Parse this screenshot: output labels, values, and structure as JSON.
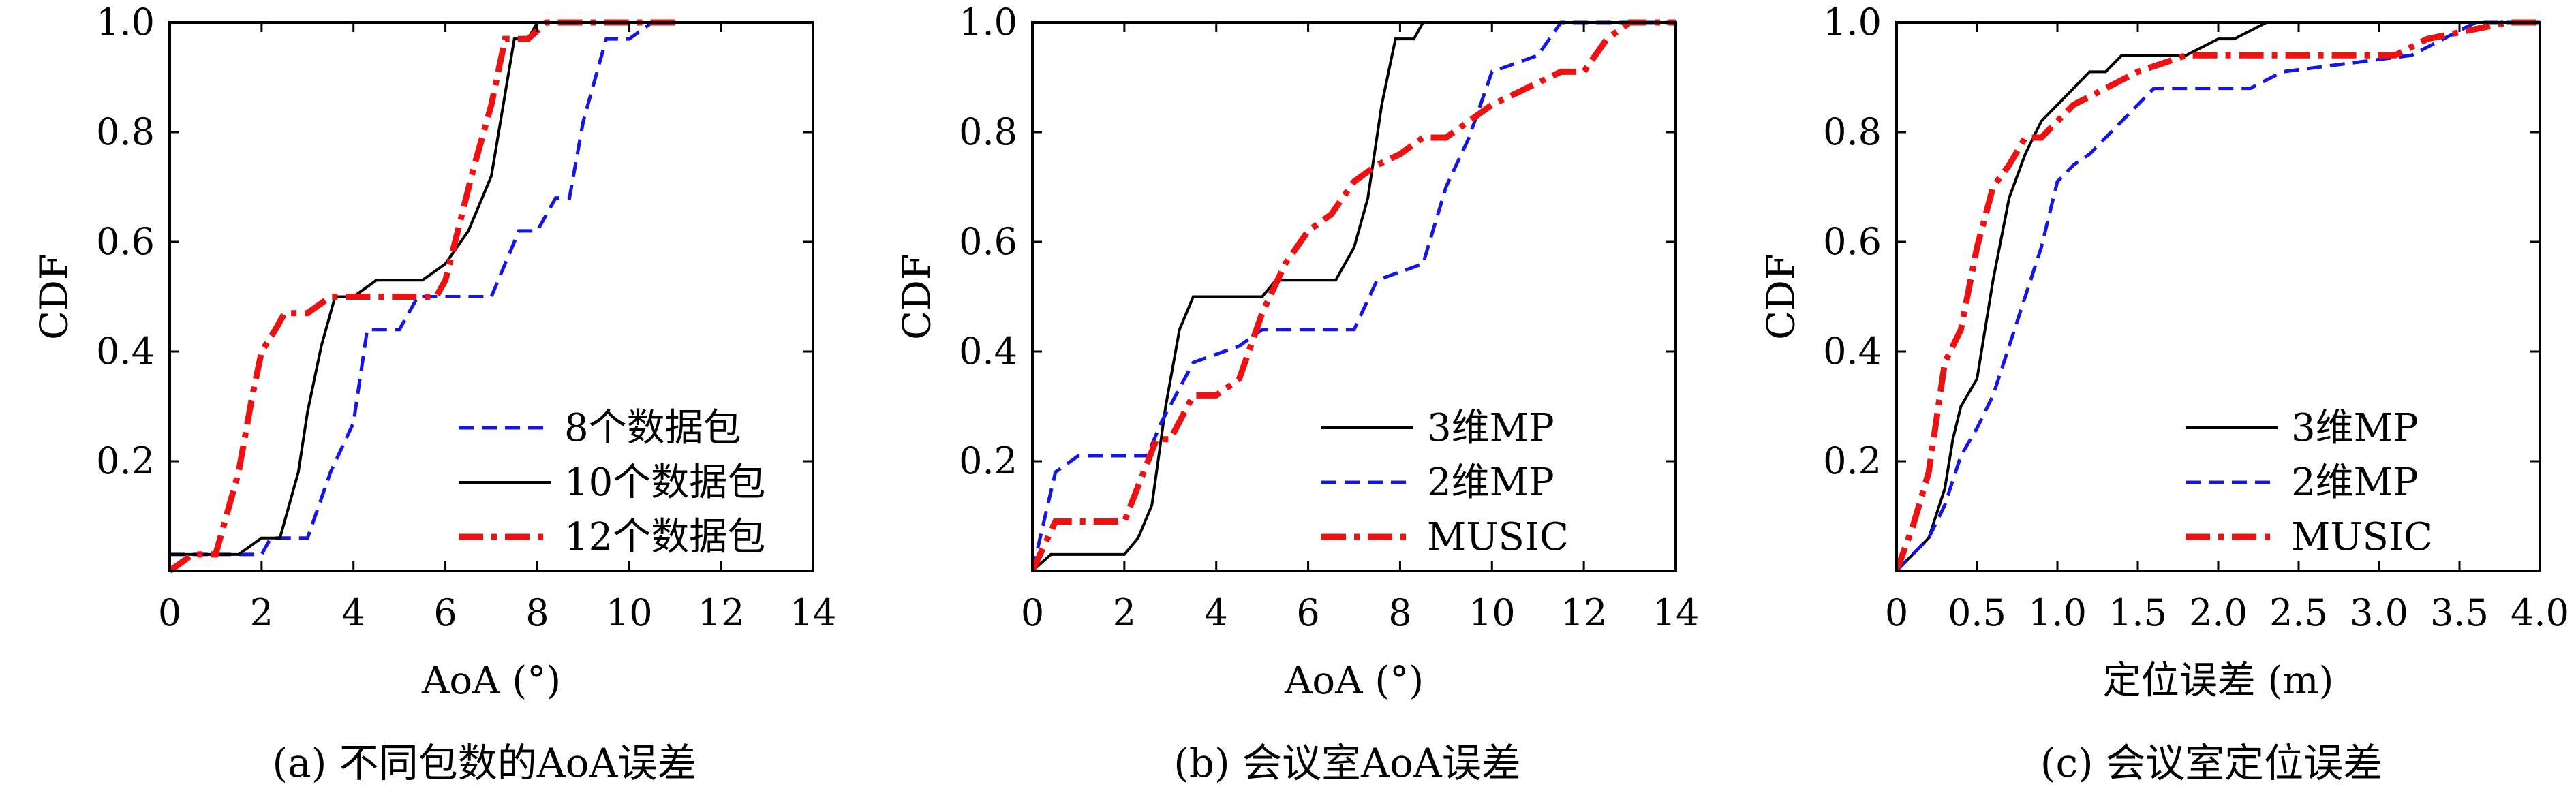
{
  "colors": {
    "black": "#000000",
    "blue": "#1515e6",
    "red": "#ee1111"
  },
  "chart_data": [
    {
      "type": "line",
      "panel": "a",
      "caption": "(a) 不同包数的AoA误差",
      "xlabel": "AoA (°)",
      "ylabel": "CDF",
      "xlim": [
        0,
        14
      ],
      "ylim": [
        0,
        1
      ],
      "xticks": [
        "0",
        "2",
        "4",
        "6",
        "8",
        "10",
        "12",
        "14"
      ],
      "yticks": [
        "0.2",
        "0.4",
        "0.6",
        "0.8",
        "1.0"
      ],
      "legend_position": "lower-right",
      "series": [
        {
          "name": "8个数据包",
          "color": "#1515e6",
          "style": "dashed",
          "x": [
            0,
            2.0,
            2.2,
            3.0,
            3.5,
            4.0,
            4.3,
            5.0,
            5.4,
            6.0,
            7.0,
            7.2,
            7.6,
            8.0,
            8.4,
            8.7,
            9.0,
            9.5,
            10.0,
            10.5
          ],
          "y": [
            0.03,
            0.03,
            0.06,
            0.06,
            0.18,
            0.27,
            0.44,
            0.44,
            0.5,
            0.5,
            0.5,
            0.54,
            0.62,
            0.62,
            0.68,
            0.68,
            0.82,
            0.97,
            0.97,
            1.0
          ]
        },
        {
          "name": "10个数据包",
          "color": "#000000",
          "style": "solid",
          "x": [
            0,
            1.5,
            2.0,
            2.4,
            2.8,
            3.0,
            3.3,
            3.6,
            4.0,
            4.5,
            5.5,
            6.0,
            6.5,
            7.0,
            7.5,
            7.8,
            8.0,
            8.5,
            9.0
          ],
          "y": [
            0.03,
            0.03,
            0.06,
            0.06,
            0.18,
            0.29,
            0.41,
            0.5,
            0.5,
            0.53,
            0.53,
            0.56,
            0.62,
            0.72,
            0.97,
            0.97,
            1.0,
            1.0,
            1.0
          ]
        },
        {
          "name": "12个数据包",
          "color": "#ee1111",
          "style": "dashdot",
          "x": [
            0,
            0.5,
            1.0,
            1.5,
            1.8,
            2.0,
            2.3,
            2.5,
            3.0,
            3.5,
            4.0,
            5.0,
            5.8,
            6.0,
            6.3,
            6.6,
            7.0,
            7.3,
            7.8,
            8.2,
            9.0,
            11.0
          ],
          "y": [
            0,
            0.03,
            0.03,
            0.18,
            0.32,
            0.4,
            0.44,
            0.47,
            0.47,
            0.5,
            0.5,
            0.5,
            0.5,
            0.53,
            0.63,
            0.73,
            0.85,
            0.97,
            0.97,
            1.0,
            1.0,
            1.0
          ]
        }
      ]
    },
    {
      "type": "line",
      "panel": "b",
      "caption": "(b) 会议室AoA误差",
      "xlabel": "AoA (°)",
      "ylabel": "CDF",
      "xlim": [
        0,
        14
      ],
      "ylim": [
        0,
        1
      ],
      "xticks": [
        "0",
        "2",
        "4",
        "6",
        "8",
        "10",
        "12",
        "14"
      ],
      "yticks": [
        "0.2",
        "0.4",
        "0.6",
        "0.8",
        "1.0"
      ],
      "legend_position": "lower-right",
      "series": [
        {
          "name": "3维MP",
          "color": "#000000",
          "style": "solid",
          "x": [
            0,
            0.4,
            2.0,
            2.3,
            2.6,
            2.9,
            3.2,
            3.5,
            3.8,
            5.0,
            5.3,
            6.6,
            7.0,
            7.3,
            7.6,
            7.9,
            8.3,
            8.5
          ],
          "y": [
            0,
            0.03,
            0.03,
            0.06,
            0.12,
            0.3,
            0.44,
            0.5,
            0.5,
            0.5,
            0.53,
            0.53,
            0.59,
            0.68,
            0.85,
            0.97,
            0.97,
            1.0
          ]
        },
        {
          "name": "2维MP",
          "color": "#1515e6",
          "style": "dashed",
          "x": [
            0,
            0.5,
            1.0,
            2.5,
            2.8,
            3.5,
            4.5,
            5.0,
            6.0,
            7.0,
            7.5,
            8.5,
            9.0,
            9.5,
            10.0,
            11.0,
            11.5,
            12.5,
            14.0
          ],
          "y": [
            0,
            0.18,
            0.21,
            0.21,
            0.27,
            0.38,
            0.41,
            0.44,
            0.44,
            0.44,
            0.53,
            0.56,
            0.7,
            0.79,
            0.91,
            0.94,
            1.0,
            1.0,
            1.0
          ]
        },
        {
          "name": "MUSIC",
          "color": "#ee1111",
          "style": "dashdot",
          "x": [
            0,
            0.5,
            1.5,
            2.0,
            2.7,
            3.0,
            3.5,
            4.0,
            4.5,
            5.0,
            5.5,
            6.0,
            6.5,
            7.0,
            7.5,
            8.0,
            8.5,
            9.0,
            10.0,
            11.5,
            12.0,
            12.5,
            13.0,
            14.0
          ],
          "y": [
            0,
            0.09,
            0.09,
            0.09,
            0.24,
            0.24,
            0.32,
            0.32,
            0.35,
            0.47,
            0.56,
            0.62,
            0.65,
            0.71,
            0.74,
            0.76,
            0.79,
            0.79,
            0.85,
            0.91,
            0.91,
            0.97,
            1.0,
            1.0
          ]
        }
      ]
    },
    {
      "type": "line",
      "panel": "c",
      "caption": "(c) 会议室定位误差",
      "xlabel": "定位误差 (m)",
      "ylabel": "CDF",
      "xlim": [
        0,
        4
      ],
      "ylim": [
        0,
        1
      ],
      "xticks": [
        "0",
        "0.5",
        "1.0",
        "1.5",
        "2.0",
        "2.5",
        "3.0",
        "3.5",
        "4.0"
      ],
      "yticks": [
        "0.2",
        "0.4",
        "0.6",
        "0.8",
        "1.0"
      ],
      "legend_position": "lower-right",
      "series": [
        {
          "name": "3维MP",
          "color": "#000000",
          "style": "solid",
          "x": [
            0,
            0.1,
            0.2,
            0.3,
            0.35,
            0.4,
            0.5,
            0.6,
            0.7,
            0.8,
            0.9,
            1.0,
            1.1,
            1.2,
            1.3,
            1.4,
            1.6,
            1.8,
            2.0,
            2.1,
            2.3,
            2.5,
            4.0
          ],
          "y": [
            0,
            0.03,
            0.06,
            0.15,
            0.24,
            0.3,
            0.35,
            0.53,
            0.68,
            0.76,
            0.82,
            0.85,
            0.88,
            0.91,
            0.91,
            0.94,
            0.94,
            0.94,
            0.97,
            0.97,
            1.0,
            1.0,
            1.0
          ]
        },
        {
          "name": "2维MP",
          "color": "#1515e6",
          "style": "dashed",
          "x": [
            0,
            0.2,
            0.3,
            0.4,
            0.5,
            0.6,
            0.7,
            0.8,
            0.9,
            1.0,
            1.1,
            1.2,
            1.3,
            1.5,
            1.6,
            2.0,
            2.2,
            2.4,
            3.2,
            3.4,
            3.6,
            4.0
          ],
          "y": [
            0,
            0.06,
            0.12,
            0.21,
            0.26,
            0.32,
            0.41,
            0.5,
            0.59,
            0.71,
            0.74,
            0.76,
            0.79,
            0.85,
            0.88,
            0.88,
            0.88,
            0.91,
            0.94,
            0.97,
            1.0,
            1.0
          ]
        },
        {
          "name": "MUSIC",
          "color": "#ee1111",
          "style": "dashdot",
          "x": [
            0,
            0.1,
            0.2,
            0.3,
            0.4,
            0.5,
            0.6,
            0.7,
            0.8,
            0.9,
            1.0,
            1.1,
            1.3,
            1.5,
            1.8,
            2.5,
            3.1,
            3.3,
            3.8,
            4.0
          ],
          "y": [
            0,
            0.08,
            0.18,
            0.38,
            0.44,
            0.59,
            0.7,
            0.74,
            0.79,
            0.79,
            0.82,
            0.85,
            0.88,
            0.91,
            0.94,
            0.94,
            0.94,
            0.97,
            1.0,
            1.0
          ]
        }
      ]
    }
  ]
}
